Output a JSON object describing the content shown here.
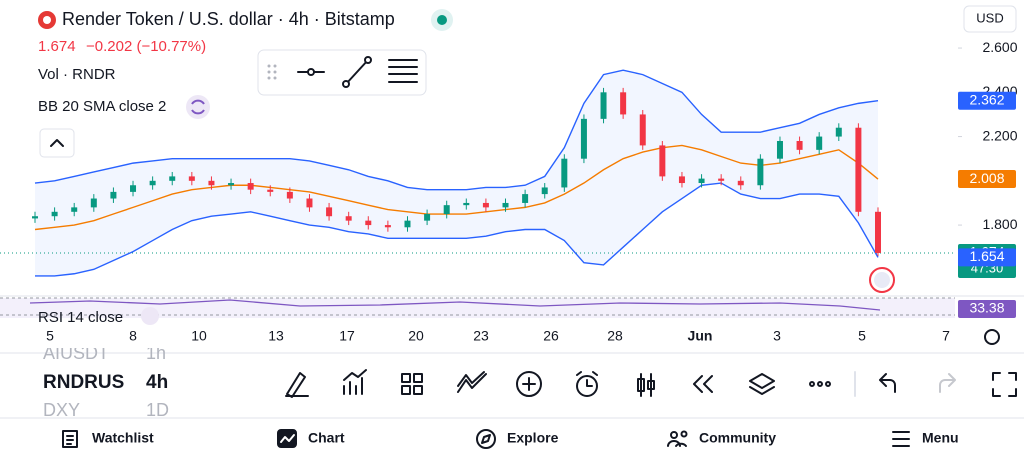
{
  "header": {
    "title": "Render Token / U.S. dollar · 4h · Bitstamp",
    "price": "1.674",
    "change": "−0.202 (−10.77%)",
    "currency": "USD"
  },
  "indicators": [
    "Vol · RNDR",
    "BB 20 SMA close 2",
    "RSI 14 close"
  ],
  "chart_data": {
    "type": "candlestick",
    "up_color": "#089981",
    "down_color": "#f23645",
    "candles": [
      [
        1.83,
        1.86,
        1.81,
        1.84
      ],
      [
        1.84,
        1.88,
        1.82,
        1.86
      ],
      [
        1.86,
        1.9,
        1.84,
        1.88
      ],
      [
        1.88,
        1.94,
        1.86,
        1.92
      ],
      [
        1.92,
        1.97,
        1.9,
        1.95
      ],
      [
        1.95,
        2.0,
        1.93,
        1.98
      ],
      [
        1.98,
        2.02,
        1.96,
        2.0
      ],
      [
        2.0,
        2.04,
        1.98,
        2.02
      ],
      [
        2.02,
        2.04,
        1.98,
        2.0
      ],
      [
        2.0,
        2.02,
        1.96,
        1.98
      ],
      [
        1.98,
        2.01,
        1.96,
        1.99
      ],
      [
        1.99,
        2.01,
        1.94,
        1.96
      ],
      [
        1.96,
        1.98,
        1.93,
        1.95
      ],
      [
        1.95,
        1.97,
        1.9,
        1.92
      ],
      [
        1.92,
        1.94,
        1.86,
        1.88
      ],
      [
        1.88,
        1.9,
        1.82,
        1.84
      ],
      [
        1.84,
        1.86,
        1.8,
        1.82
      ],
      [
        1.82,
        1.84,
        1.78,
        1.8
      ],
      [
        1.8,
        1.82,
        1.77,
        1.79
      ],
      [
        1.79,
        1.84,
        1.77,
        1.82
      ],
      [
        1.82,
        1.87,
        1.8,
        1.85
      ],
      [
        1.85,
        1.91,
        1.83,
        1.89
      ],
      [
        1.89,
        1.92,
        1.87,
        1.9
      ],
      [
        1.9,
        1.92,
        1.86,
        1.88
      ],
      [
        1.88,
        1.92,
        1.86,
        1.9
      ],
      [
        1.9,
        1.96,
        1.88,
        1.94
      ],
      [
        1.94,
        1.99,
        1.92,
        1.97
      ],
      [
        1.97,
        2.12,
        1.95,
        2.1
      ],
      [
        2.1,
        2.3,
        2.08,
        2.28
      ],
      [
        2.28,
        2.42,
        2.26,
        2.4
      ],
      [
        2.4,
        2.42,
        2.28,
        2.3
      ],
      [
        2.3,
        2.32,
        2.14,
        2.16
      ],
      [
        2.16,
        2.18,
        2.0,
        2.02
      ],
      [
        2.02,
        2.04,
        1.97,
        1.99
      ],
      [
        1.99,
        2.03,
        1.97,
        2.01
      ],
      [
        2.01,
        2.03,
        1.98,
        2.0
      ],
      [
        2.0,
        2.02,
        1.96,
        1.98
      ],
      [
        1.98,
        2.12,
        1.96,
        2.1
      ],
      [
        2.1,
        2.2,
        2.08,
        2.18
      ],
      [
        2.18,
        2.2,
        2.12,
        2.14
      ],
      [
        2.14,
        2.22,
        2.12,
        2.2
      ],
      [
        2.2,
        2.26,
        2.18,
        2.24
      ],
      [
        2.24,
        2.26,
        1.84,
        1.86
      ],
      [
        1.86,
        1.88,
        1.66,
        1.674
      ]
    ],
    "bb_upper": {
      "color": "#2962ff",
      "values": [
        1.99,
        2.0,
        2.02,
        2.04,
        2.06,
        2.08,
        2.09,
        2.1,
        2.1,
        2.1,
        2.1,
        2.1,
        2.1,
        2.1,
        2.09,
        2.07,
        2.05,
        2.02,
        2.0,
        1.97,
        1.96,
        1.96,
        1.96,
        1.97,
        1.97,
        1.98,
        2.02,
        2.15,
        2.35,
        2.48,
        2.5,
        2.48,
        2.44,
        2.4,
        2.3,
        2.22,
        2.22,
        2.22,
        2.24,
        2.26,
        2.3,
        2.33,
        2.35,
        2.362
      ]
    },
    "bb_middle": {
      "color": "#f57c00",
      "values": [
        1.78,
        1.79,
        1.8,
        1.82,
        1.85,
        1.88,
        1.91,
        1.94,
        1.96,
        1.97,
        1.98,
        1.98,
        1.97,
        1.96,
        1.95,
        1.93,
        1.91,
        1.89,
        1.87,
        1.86,
        1.85,
        1.85,
        1.85,
        1.86,
        1.87,
        1.88,
        1.9,
        1.94,
        1.99,
        2.05,
        2.1,
        2.13,
        2.15,
        2.16,
        2.14,
        2.11,
        2.08,
        2.07,
        2.08,
        2.1,
        2.12,
        2.14,
        2.08,
        2.008
      ]
    },
    "bb_lower": {
      "color": "#2962ff",
      "values": [
        1.57,
        1.57,
        1.58,
        1.6,
        1.64,
        1.68,
        1.73,
        1.78,
        1.82,
        1.84,
        1.85,
        1.86,
        1.84,
        1.82,
        1.8,
        1.79,
        1.77,
        1.76,
        1.74,
        1.74,
        1.74,
        1.74,
        1.74,
        1.75,
        1.77,
        1.78,
        1.78,
        1.73,
        1.63,
        1.62,
        1.7,
        1.78,
        1.86,
        1.92,
        1.98,
        1.99,
        1.94,
        1.92,
        1.92,
        1.94,
        1.94,
        1.93,
        1.81,
        1.654
      ]
    },
    "ylim": [
      1.484,
      2.659
    ],
    "yticks": [
      {
        "value": 2.6,
        "label": "2.600"
      },
      {
        "value": 2.4,
        "label": "2.400"
      },
      {
        "value": 2.2,
        "label": "2.200"
      },
      {
        "value": 1.8,
        "label": "1.800"
      }
    ],
    "xticks": [
      "5",
      "8",
      "10",
      "13",
      "17",
      "20",
      "23",
      "26",
      "28",
      "Jun",
      "3",
      "5",
      "7"
    ],
    "tags": [
      {
        "value": 2.362,
        "label": "2.362",
        "color": "#2962ff"
      },
      {
        "value": 2.008,
        "label": "2.008",
        "color": "#f57c00"
      },
      {
        "value": 1.674,
        "label": "1.674",
        "color": "#089981",
        "countdown": "47:30"
      },
      {
        "value": 1.654,
        "label": "1.654",
        "color": "#2962ff"
      }
    ],
    "rsi_label": "33.38"
  },
  "toolbar": {
    "symbols": [
      "AIUSDT",
      "RNDRUS",
      "DXY"
    ],
    "intervals": [
      "1h",
      "4h",
      "1D"
    ]
  },
  "nav": [
    "Watchlist",
    "Chart",
    "Explore",
    "Community",
    "Menu"
  ]
}
